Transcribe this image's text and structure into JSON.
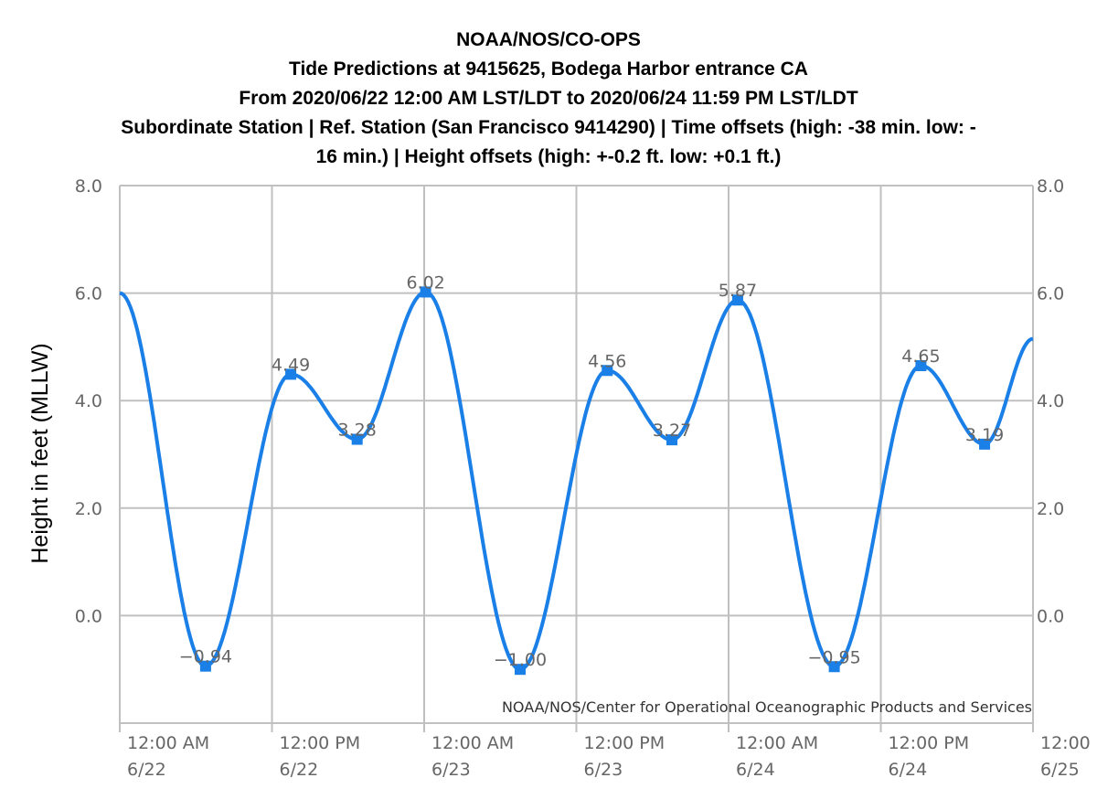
{
  "chart_data": {
    "type": "line",
    "title": [
      "NOAA/NOS/CO-OPS",
      "Tide Predictions at 9415625, Bodega Harbor entrance CA",
      "From 2020/06/22 12:00 AM LST/LDT to 2020/06/24 11:59 PM LST/LDT",
      "Subordinate Station | Ref. Station (San Francisco 9414290) | Time offsets (high: -38 min. low: -",
      "16 min.) | Height offsets (high: +-0.2 ft. low: +0.1 ft.)"
    ],
    "ylabel": "Height in feet (MLLW)",
    "xlabel": "",
    "ylim": [
      -2,
      8
    ],
    "xlim": [
      "2020-06-22 00:00",
      "2020-06-25 00:00"
    ],
    "y_ticks": [
      "8.0",
      "6.0",
      "4.0",
      "2.0",
      "0.0"
    ],
    "x_ticks": [
      {
        "line1": "12:00 AM",
        "line2": "6/22"
      },
      {
        "line1": "12:00 PM",
        "line2": "6/22"
      },
      {
        "line1": "12:00 AM",
        "line2": "6/23"
      },
      {
        "line1": "12:00 PM",
        "line2": "6/23"
      },
      {
        "line1": "12:00 AM",
        "line2": "6/24"
      },
      {
        "line1": "12:00 PM",
        "line2": "6/24"
      },
      {
        "line1": "12:00",
        "line2": "6/25"
      }
    ],
    "grid": true,
    "series": [
      {
        "color": "#1a7fe6",
        "points": [
          {
            "t": "2020-06-22 00:00",
            "v": 6.0
          },
          {
            "t": "2020-06-22 06:46",
            "v": -0.94,
            "label": "−0.94"
          },
          {
            "t": "2020-06-22 13:29",
            "v": 4.49,
            "label": "4.49"
          },
          {
            "t": "2020-06-22 18:43",
            "v": 3.28,
            "label": "3.28"
          },
          {
            "t": "2020-06-23 00:07",
            "v": 6.02,
            "label": "6.02"
          },
          {
            "t": "2020-06-23 07:34",
            "v": -1.0,
            "label": "−1.00"
          },
          {
            "t": "2020-06-23 14:26",
            "v": 4.56,
            "label": "4.56"
          },
          {
            "t": "2020-06-23 19:32",
            "v": 3.27,
            "label": "3.27"
          },
          {
            "t": "2020-06-24 00:43",
            "v": 5.87,
            "label": "5.87"
          },
          {
            "t": "2020-06-24 08:20",
            "v": -0.95,
            "label": "−0.95"
          },
          {
            "t": "2020-06-24 15:10",
            "v": 4.65,
            "label": "4.65"
          },
          {
            "t": "2020-06-24 20:11",
            "v": 3.19,
            "label": "3.19"
          },
          {
            "t": "2020-06-25 00:00",
            "v": 5.15
          }
        ]
      }
    ],
    "credit": "NOAA/NOS/Center for Operational Oceanographic Products and Services"
  }
}
